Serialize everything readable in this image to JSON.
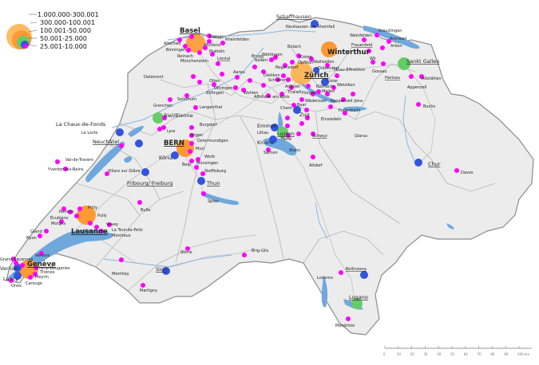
{
  "legend": {
    "items": [
      {
        "label": "1.000.000-300.001",
        "color": "#ffb04a"
      },
      {
        "label": "300.000-100.001",
        "color": "#ff9933"
      },
      {
        "label": "100.001-50.000",
        "color": "#66cc66"
      },
      {
        "label": "50.001-25.000",
        "color": "#3355dd"
      },
      {
        "label": "25.001-10.000",
        "color": "#ff00ff"
      }
    ]
  },
  "colors": {
    "water": "#6fa8dc",
    "land": "#ececec",
    "border": "#888888",
    "river": "#8ab6e6",
    "road": "#cccccc"
  },
  "cities": {
    "basel": "Basel",
    "zurich": "Zürich",
    "winterthur": "Winterthur",
    "bern": "BERN",
    "geneve": "Genève",
    "lausanne": "Lausanne",
    "stgallen": "Sankt Gallen",
    "luzern": "Luzern",
    "lugano": "Lugano",
    "biel": "Biel/Bienne",
    "schaffhausen": "Schaffhausen",
    "chaux": "La Chaux-de-Fonds",
    "neuchatel": "Neuchâtel",
    "fribourg": "Fribourg/ Freiburg",
    "thun": "Thun",
    "chur": "Chur",
    "sion": "Sion",
    "koniz": "Köniz",
    "emmen": "Emmen",
    "kriens": "Kriens",
    "zug": "Zug",
    "bellinzona": "Bellinzona",
    "vernier": "Vernier",
    "lancy": "Lancy",
    "uster": "Uster",
    "dubendorf": "Dübendorf",
    "dietikon": "Dietikon",
    "liestal": "Liestal",
    "locarno": "Locarno",
    "mendrisio": "Mendrisio",
    "grenchen": "Grenchen",
    "lyss": "Lyss",
    "burgdorf": "Burgdorf",
    "solothurn": "Solothurn",
    "olten": "Olten",
    "zofingen": "Zofingen",
    "langenthal": "Langenthal",
    "delemont": "Delémont",
    "yverdon": "Yverdon-les-Bains",
    "monthey": "Monthey",
    "martigny": "Martigny",
    "sierre": "Sierre",
    "brig": "Brig-Glis",
    "davos": "Davos",
    "buchs": "Buchs",
    "wil": "Wil",
    "gossau": "Gossau",
    "herisau": "Herisau",
    "arbon": "Arbon",
    "amriswil": "Amriswil",
    "kreuzlingen": "Kreuzlingen",
    "frauenfeld": "Frauenfeld",
    "weinfelden": "Weinfelden",
    "altstatten": "Altstätten",
    "appenzell": "Appenzell",
    "aarau": "Aarau",
    "baden": "Baden",
    "wohlen": "Wohlen",
    "schlieren": "Schlieren",
    "rapperswil": "Rapperswil-Jona",
    "wadenswil": "Wädenswil",
    "horgen": "Horgen",
    "einsiedeln": "Einsiedeln",
    "schwyz": "Schwyz",
    "cham": "Cham",
    "baar": "Baar",
    "horw": "Horw",
    "littau": "Littau",
    "sarnen": "Sarnen",
    "stans": "Stans",
    "altdorf": "Altdorf",
    "glarus": "Glarus",
    "spiez": "Spiez",
    "steffisburg": "Steffisburg",
    "munsingen": "Münsingen",
    "muri": "Muri",
    "worb": "Worb",
    "belp": "Belp",
    "ittigen": "Ittigen",
    "ostermundigen": "Ostermundigen",
    "bulle": "Bulle",
    "villars": "Villars sur Glâne",
    "valdetravers": "Val-de-Travers",
    "lelocle": "Le Locle",
    "renens": "Renens",
    "prilly": "Prilly",
    "pully": "Pully",
    "ecublens": "Écublens",
    "morges": "Morges",
    "gland": "Gland",
    "nyon": "Nyon",
    "vevey": "Vevey",
    "latour": "La Tour-de-Peilz",
    "montreux": "Montreux",
    "versoix": "Versoix",
    "meyrin": "Meyrin",
    "onex": "Onex",
    "carouge": "Carouge",
    "thonex": "Thônex",
    "chene": "Chêne-Bougeries",
    "grandsaconnex": "Grand-Saconnex",
    "neuhausen": "Neuhausen am Rheinfall",
    "allschwil": "Allschwil",
    "binningen": "Binningen",
    "riehen": "Riehen",
    "reinach": "Reinach",
    "munchenstein": "Münchenstein",
    "pratteln": "Pratteln",
    "rheinfelden": "Rheinfelden",
    "muttenz": "Muttenz",
    "oftringen": "Oftringen",
    "bulach": "Bülach",
    "kloten": "Kloten",
    "opfikon": "Opfikon",
    "wallisellen": "Wallisellen",
    "regensdorf": "Regensdorf",
    "wettingen": "Wettingen",
    "brugg": "Brugg",
    "adliswil": "Adliswil",
    "thalwil": "Thalwil",
    "kusnacht": "Küsnacht",
    "meilen": "Meilen",
    "wetzikon": "Wetzikon",
    "illnau": "Illnau-Effretikon",
    "freienbach": "Freienbach",
    "affoltern": "Affoltern am Albis",
    "kriens2": "Kriens"
  },
  "scale": {
    "ticks": [
      "0",
      "10",
      "20",
      "30",
      "40",
      "50",
      "60",
      "70",
      "80",
      "90",
      "100 km"
    ]
  }
}
